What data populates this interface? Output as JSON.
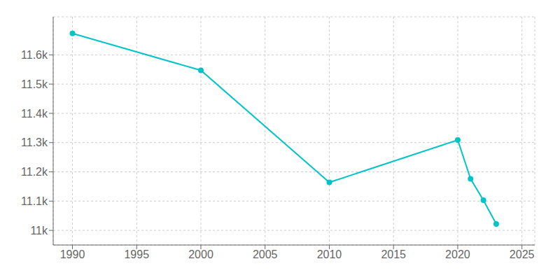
{
  "chart_data": {
    "type": "line",
    "x": [
      1990,
      2000,
      2010,
      2020,
      2021,
      2022,
      2023
    ],
    "values": [
      11673,
      11547,
      11164,
      11309,
      11176,
      11103,
      11022
    ],
    "color": "#00C5C8",
    "marker": "circle",
    "xlim": [
      1988.5,
      2026
    ],
    "ylim": [
      10950,
      11730
    ],
    "xticks": [
      1990,
      1995,
      2000,
      2005,
      2010,
      2015,
      2020,
      2025
    ],
    "yticks": [
      {
        "value": 11000,
        "label": "11k"
      },
      {
        "value": 11100,
        "label": "11.1k"
      },
      {
        "value": 11200,
        "label": "11.2k"
      },
      {
        "value": 11300,
        "label": "11.3k"
      },
      {
        "value": 11400,
        "label": "11.4k"
      },
      {
        "value": 11500,
        "label": "11.5k"
      },
      {
        "value": 11600,
        "label": "11.6k"
      }
    ],
    "grid": true
  }
}
